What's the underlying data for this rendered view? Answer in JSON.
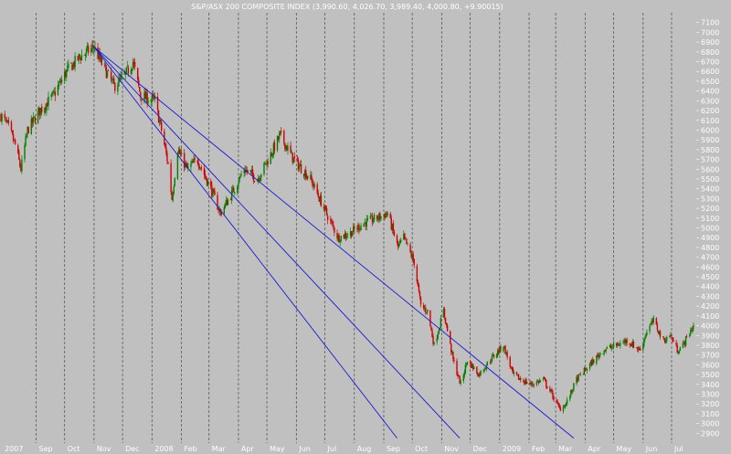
{
  "chart_data": {
    "type": "candlestick",
    "title": "S&P/ASX 200 COMPOSITE INDEX (3,990.60, 4,026.70, 3,989.40, 4,000.80, +9.90015)",
    "y_ticks": [
      2900,
      3000,
      3100,
      3200,
      3300,
      3400,
      3500,
      3600,
      3700,
      3800,
      3900,
      4000,
      4100,
      4200,
      4300,
      4400,
      4500,
      4600,
      4700,
      4800,
      4900,
      5000,
      5100,
      5200,
      5300,
      5400,
      5500,
      5600,
      5700,
      5800,
      5900,
      6000,
      6100,
      6200,
      6300,
      6400,
      6500,
      6600,
      6700,
      6800,
      6900,
      7000,
      7100
    ],
    "ylim": [
      2800,
      7200
    ],
    "x_labels": [
      "2007",
      "Sep",
      "Oct",
      "Nov",
      "Dec",
      "2008",
      "Feb",
      "Mar",
      "Apr",
      "May",
      "Jun",
      "Jul",
      "Aug",
      "Sep",
      "Oct",
      "Nov",
      "Dec",
      "2009",
      "Feb",
      "Mar",
      "Apr",
      "May",
      "Jun",
      "Jul"
    ],
    "xlim": [
      "2007-07-25",
      "2009-07-27"
    ],
    "grid": true,
    "colors": {
      "background": "#c0c0c0",
      "grid": "#5a5a5a",
      "up": "#008000",
      "down": "#d00000",
      "trendline": "#1a1ad0",
      "text": "#ffffff"
    },
    "price_path": [
      [
        "2007-07-26",
        6150
      ],
      [
        "2007-08-02",
        6050
      ],
      [
        "2007-08-10",
        5850
      ],
      [
        "2007-08-16",
        5600
      ],
      [
        "2007-08-23",
        6000
      ],
      [
        "2007-09-05",
        6200
      ],
      [
        "2007-09-19",
        6350
      ],
      [
        "2007-10-03",
        6600
      ],
      [
        "2007-10-17",
        6750
      ],
      [
        "2007-11-01",
        6850
      ],
      [
        "2007-11-08",
        6700
      ],
      [
        "2007-11-22",
        6450
      ],
      [
        "2007-12-03",
        6550
      ],
      [
        "2007-12-12",
        6700
      ],
      [
        "2007-12-20",
        6350
      ],
      [
        "2008-01-04",
        6300
      ],
      [
        "2008-01-11",
        6000
      ],
      [
        "2008-01-18",
        5650
      ],
      [
        "2008-01-22",
        5300
      ],
      [
        "2008-01-28",
        5800
      ],
      [
        "2008-02-07",
        5600
      ],
      [
        "2008-02-18",
        5700
      ],
      [
        "2008-03-03",
        5400
      ],
      [
        "2008-03-13",
        5150
      ],
      [
        "2008-03-25",
        5350
      ],
      [
        "2008-04-07",
        5600
      ],
      [
        "2008-04-21",
        5500
      ],
      [
        "2008-05-05",
        5750
      ],
      [
        "2008-05-15",
        5950
      ],
      [
        "2008-05-29",
        5700
      ],
      [
        "2008-06-16",
        5500
      ],
      [
        "2008-06-30",
        5200
      ],
      [
        "2008-07-15",
        4900
      ],
      [
        "2008-07-28",
        4950
      ],
      [
        "2008-08-11",
        5050
      ],
      [
        "2008-08-25",
        5100
      ],
      [
        "2008-09-05",
        5150
      ],
      [
        "2008-09-16",
        4800
      ],
      [
        "2008-09-22",
        4900
      ],
      [
        "2008-10-03",
        4650
      ],
      [
        "2008-10-10",
        4200
      ],
      [
        "2008-10-17",
        4150
      ],
      [
        "2008-10-24",
        3800
      ],
      [
        "2008-11-03",
        4150
      ],
      [
        "2008-11-13",
        3650
      ],
      [
        "2008-11-21",
        3400
      ],
      [
        "2008-11-28",
        3650
      ],
      [
        "2008-12-10",
        3500
      ],
      [
        "2008-12-22",
        3650
      ],
      [
        "2009-01-05",
        3800
      ],
      [
        "2009-01-15",
        3500
      ],
      [
        "2009-01-23",
        3450
      ],
      [
        "2009-02-03",
        3400
      ],
      [
        "2009-02-16",
        3450
      ],
      [
        "2009-02-25",
        3300
      ],
      [
        "2009-03-05",
        3150
      ],
      [
        "2009-03-12",
        3200
      ],
      [
        "2009-03-23",
        3450
      ],
      [
        "2009-04-06",
        3600
      ],
      [
        "2009-04-20",
        3750
      ],
      [
        "2009-05-04",
        3800
      ],
      [
        "2009-05-15",
        3850
      ],
      [
        "2009-05-29",
        3750
      ],
      [
        "2009-06-05",
        3950
      ],
      [
        "2009-06-12",
        4050
      ],
      [
        "2009-06-22",
        3850
      ],
      [
        "2009-06-30",
        3900
      ],
      [
        "2009-07-07",
        3750
      ],
      [
        "2009-07-13",
        3800
      ],
      [
        "2009-07-21",
        3950
      ],
      [
        "2009-07-24",
        4000
      ]
    ],
    "fan_lines": [
      {
        "start": [
          "2007-11-01",
          6850
        ],
        "end": [
          "2009-03-20",
          2850
        ]
      },
      {
        "start": [
          "2007-11-01",
          6850
        ],
        "end": [
          "2008-11-20",
          2850
        ]
      },
      {
        "start": [
          "2007-11-01",
          6850
        ],
        "end": [
          "2008-09-15",
          2850
        ]
      }
    ]
  }
}
